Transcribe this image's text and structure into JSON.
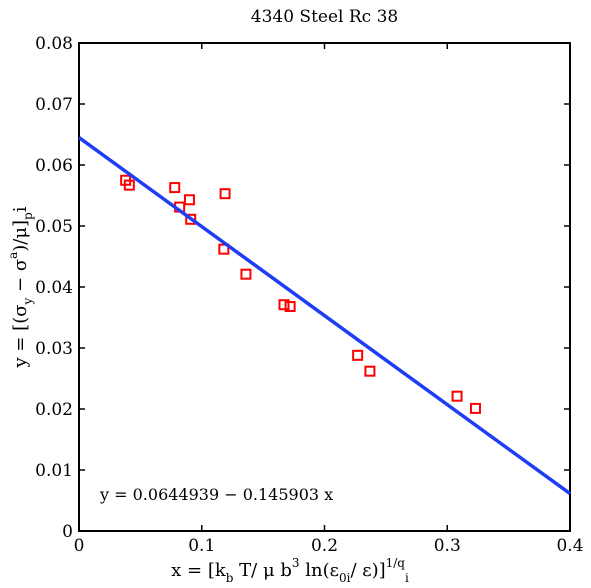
{
  "chart_data": {
    "type": "scatter",
    "title": "4340 Steel Rc 38",
    "xlabel": {
      "parts": [
        "x = [k",
        "b",
        " T/ μ b",
        "3",
        " ln(ε",
        "0i",
        "/ ε)]",
        "1/q",
        "i"
      ]
    },
    "ylabel": {
      "parts": [
        "y = [(σ",
        "y",
        " − σ",
        "a",
        ")/μ]",
        "p",
        "i"
      ]
    },
    "xlim": [
      0,
      0.4
    ],
    "ylim": [
      0,
      0.08
    ],
    "x_ticks": [
      "0",
      "0.1",
      "0.2",
      "0.3",
      "0.4"
    ],
    "y_ticks": [
      "0",
      "0.01",
      "0.02",
      "0.03",
      "0.04",
      "0.05",
      "0.06",
      "0.07",
      "0.08"
    ],
    "grid": false,
    "series": [
      {
        "kind": "scatter",
        "marker": "square",
        "color": "#ff0000",
        "x": [
          0.038,
          0.041,
          0.078,
          0.082,
          0.09,
          0.091,
          0.118,
          0.119,
          0.136,
          0.167,
          0.172,
          0.227,
          0.237,
          0.308,
          0.323
        ],
        "y": [
          0.0575,
          0.0567,
          0.0563,
          0.0531,
          0.0543,
          0.0511,
          0.0462,
          0.0553,
          0.0421,
          0.0371,
          0.0368,
          0.0288,
          0.0262,
          0.0221,
          0.0201
        ]
      },
      {
        "kind": "line",
        "color": "#1f3df5",
        "intercept": 0.0644939,
        "slope": -0.145903
      }
    ],
    "annotation": "y = 0.0644939 − 0.145903 x"
  }
}
